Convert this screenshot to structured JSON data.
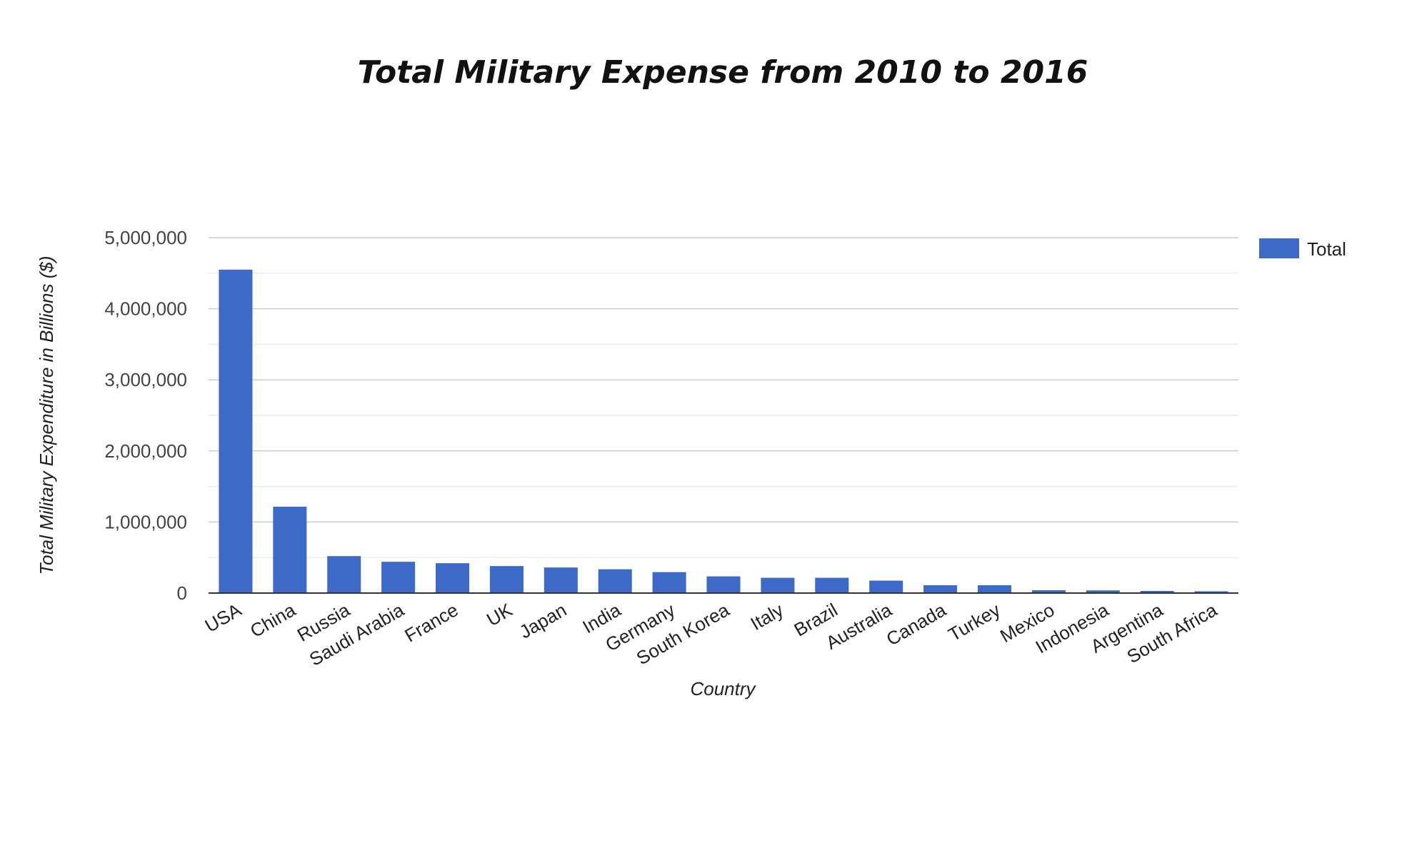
{
  "chart_data": {
    "type": "bar",
    "title": "Total Military Expense from 2010 to 2016",
    "xlabel": "Country",
    "ylabel": "Total Military Expenditure in Billions ($)",
    "ylim": [
      0,
      5000000
    ],
    "yticks": [
      0,
      1000000,
      2000000,
      3000000,
      4000000,
      5000000
    ],
    "ytick_labels": [
      "0",
      "1,000,000",
      "2,000,000",
      "3,000,000",
      "4,000,000",
      "5,000,000"
    ],
    "grid": true,
    "legend_position": "top-right",
    "categories": [
      "USA",
      "China",
      "Russia",
      "Saudi Arabia",
      "France",
      "UK",
      "Japan",
      "India",
      "Germany",
      "South Korea",
      "Italy",
      "Brazil",
      "Australia",
      "Canada",
      "Turkey",
      "Mexico",
      "Indonesia",
      "Argentina",
      "South Africa"
    ],
    "series": [
      {
        "name": "Total",
        "color": "#3d6ac6",
        "values": [
          4550000,
          1215000,
          520000,
          440000,
          420000,
          380000,
          360000,
          335000,
          295000,
          235000,
          215000,
          215000,
          175000,
          110000,
          110000,
          40000,
          38000,
          30000,
          25000
        ]
      }
    ]
  }
}
